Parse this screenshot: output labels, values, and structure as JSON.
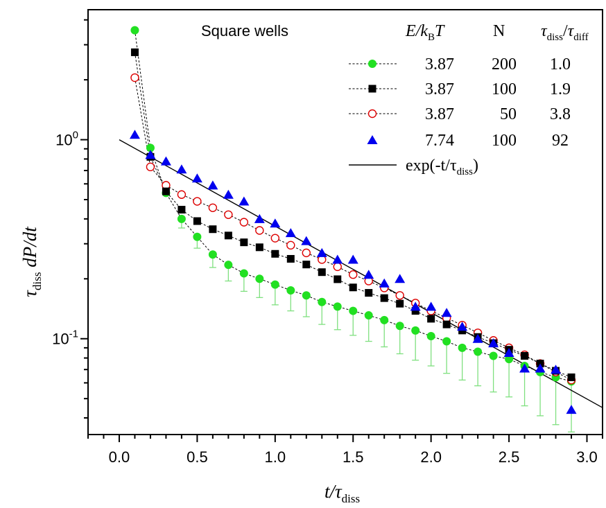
{
  "chart_data": {
    "type": "scatter",
    "title": "Square wells",
    "xlabel": {
      "main": "t/τ",
      "sub": "diss"
    },
    "ylabel": {
      "pre": "τ",
      "sub": "diss",
      "post": " dP/dt"
    },
    "x_axis": {
      "min": -0.2,
      "max": 3.1,
      "ticks": [
        "0.0",
        "0.5",
        "1.0",
        "1.5",
        "2.0",
        "2.5",
        "3.0"
      ],
      "tick_values": [
        0,
        0.5,
        1.0,
        1.5,
        2.0,
        2.5,
        3.0
      ]
    },
    "y_axis": {
      "scale": "log",
      "min": 0.033,
      "max": 4.5,
      "ticks": [
        {
          "base": "10",
          "exp": "0",
          "value": 1
        },
        {
          "base": "10",
          "exp": "-1",
          "value": 0.1
        }
      ]
    },
    "grid": false,
    "legend": {
      "placement": "top-right",
      "headers": {
        "energy": {
          "main": "E/k",
          "sub": "B",
          "post": "T"
        },
        "n": "N",
        "ratio": {
          "a": "τ",
          "a_sub": "diss",
          "slash": "/",
          "b": "τ",
          "b_sub": "diff"
        }
      },
      "rows": [
        {
          "energy": "3.87",
          "n": "200",
          "ratio": "1.0"
        },
        {
          "energy": "3.87",
          "n": "100",
          "ratio": "1.9"
        },
        {
          "energy": "3.87",
          "n": "50",
          "ratio": "3.8"
        },
        {
          "energy": "7.74",
          "n": "100",
          "ratio": "92"
        }
      ],
      "line_entry": {
        "pre": "exp(-t/τ",
        "sub": "diss",
        "post": ")"
      }
    },
    "series": [
      {
        "marker": "filled-circle",
        "color": "#22e022",
        "line": "dashed",
        "x": [
          0.1,
          0.2,
          0.3,
          0.4,
          0.5,
          0.6,
          0.7,
          0.8,
          0.9,
          1.0,
          1.1,
          1.2,
          1.3,
          1.4,
          1.5,
          1.6,
          1.7,
          1.8,
          1.9,
          2.0,
          2.1,
          2.2,
          2.3,
          2.4,
          2.5,
          2.6,
          2.7,
          2.8,
          2.9
        ],
        "y": [
          3.55,
          0.91,
          0.54,
          0.4,
          0.325,
          0.265,
          0.235,
          0.213,
          0.2,
          0.187,
          0.175,
          0.165,
          0.153,
          0.145,
          0.138,
          0.131,
          0.124,
          0.116,
          0.11,
          0.103,
          0.097,
          0.09,
          0.086,
          0.082,
          0.079,
          0.073,
          0.068,
          0.064,
          0.061
        ],
        "error_low": [
          null,
          null,
          null,
          0.36,
          0.285,
          0.228,
          0.195,
          0.173,
          0.161,
          0.148,
          0.138,
          0.129,
          0.118,
          0.111,
          0.104,
          0.097,
          0.091,
          0.084,
          0.078,
          0.073,
          0.067,
          0.062,
          0.058,
          0.054,
          0.051,
          0.046,
          0.041,
          0.037,
          0.034
        ]
      },
      {
        "marker": "filled-square",
        "color": "#000000",
        "line": "dashed",
        "x": [
          0.1,
          0.2,
          0.3,
          0.4,
          0.5,
          0.6,
          0.7,
          0.8,
          0.9,
          1.0,
          1.1,
          1.2,
          1.3,
          1.4,
          1.5,
          1.6,
          1.7,
          1.8,
          1.9,
          2.0,
          2.1,
          2.2,
          2.3,
          2.4,
          2.5,
          2.6,
          2.7,
          2.8,
          2.9
        ],
        "y": [
          2.75,
          0.82,
          0.55,
          0.445,
          0.39,
          0.355,
          0.33,
          0.305,
          0.288,
          0.267,
          0.252,
          0.236,
          0.216,
          0.199,
          0.181,
          0.17,
          0.16,
          0.15,
          0.138,
          0.126,
          0.118,
          0.11,
          0.102,
          0.095,
          0.088,
          0.082,
          0.075,
          0.069,
          0.064
        ]
      },
      {
        "marker": "open-circle",
        "color": "#dd0000",
        "line": "dashed",
        "x": [
          0.1,
          0.2,
          0.3,
          0.4,
          0.5,
          0.6,
          0.7,
          0.8,
          0.9,
          1.0,
          1.1,
          1.2,
          1.3,
          1.4,
          1.5,
          1.6,
          1.7,
          1.8,
          1.9,
          2.0,
          2.1,
          2.2,
          2.3,
          2.4,
          2.5,
          2.6,
          2.7,
          2.8,
          2.9
        ],
        "y": [
          2.05,
          0.73,
          0.59,
          0.53,
          0.49,
          0.455,
          0.42,
          0.385,
          0.35,
          0.32,
          0.295,
          0.27,
          0.25,
          0.23,
          0.21,
          0.195,
          0.18,
          0.165,
          0.151,
          0.138,
          0.127,
          0.117,
          0.107,
          0.098,
          0.09,
          0.083,
          0.075,
          0.068,
          0.062
        ]
      },
      {
        "marker": "filled-triangle",
        "color": "#0000ee",
        "line": "none",
        "x": [
          0.1,
          0.2,
          0.3,
          0.4,
          0.5,
          0.6,
          0.7,
          0.8,
          0.9,
          1.0,
          1.1,
          1.2,
          1.3,
          1.4,
          1.5,
          1.6,
          1.7,
          1.8,
          1.9,
          2.0,
          2.1,
          2.2,
          2.3,
          2.4,
          2.5,
          2.6,
          2.7,
          2.8,
          2.9
        ],
        "y": [
          1.06,
          0.84,
          0.78,
          0.71,
          0.64,
          0.59,
          0.53,
          0.49,
          0.4,
          0.38,
          0.34,
          0.31,
          0.27,
          0.25,
          0.25,
          0.21,
          0.19,
          0.2,
          0.145,
          0.145,
          0.135,
          0.115,
          0.1,
          0.095,
          0.085,
          0.071,
          0.071,
          0.07,
          0.044
        ]
      },
      {
        "marker": "none",
        "color": "#000000",
        "line": "solid",
        "function": "exp(-t)",
        "x_range": [
          0.0,
          3.1
        ]
      }
    ]
  }
}
